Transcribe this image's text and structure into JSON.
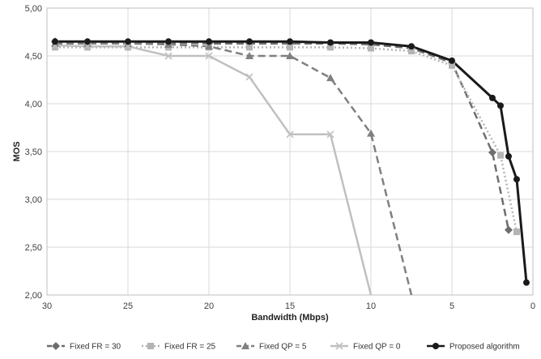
{
  "chart_data": {
    "type": "line",
    "xlabel": "Bandwidth (Mbps)",
    "ylabel": "MOS",
    "x_reversed": true,
    "xlim": [
      30,
      0
    ],
    "ylim": [
      2.0,
      5.0
    ],
    "x_ticks": [
      30,
      25,
      20,
      15,
      10,
      5,
      0
    ],
    "y_ticks": [
      "2,00",
      "2,50",
      "3,00",
      "3,50",
      "4,00",
      "4,50",
      "5,00"
    ],
    "y_tick_values": [
      2.0,
      2.5,
      3.0,
      3.5,
      4.0,
      4.5,
      5.0
    ],
    "grid": true,
    "legend_position": "bottom",
    "series": [
      {
        "name": "Fixed FR = 30",
        "color": "#6e6e6e",
        "dash": "dashed",
        "marker": "diamond",
        "points": [
          [
            29.5,
            4.65
          ],
          [
            27.5,
            4.64
          ],
          [
            25,
            4.64
          ],
          [
            22.5,
            4.64
          ],
          [
            20,
            4.63
          ],
          [
            17.5,
            4.63
          ],
          [
            15,
            4.63
          ],
          [
            12.5,
            4.63
          ],
          [
            10,
            4.62
          ],
          [
            7.5,
            4.58
          ],
          [
            5,
            4.43
          ],
          [
            2.5,
            3.49
          ],
          [
            1.5,
            2.68
          ]
        ]
      },
      {
        "name": "Fixed FR = 25",
        "color": "#b4b4b4",
        "dash": "dotted",
        "marker": "square",
        "points": [
          [
            29.5,
            4.59
          ],
          [
            27.5,
            4.59
          ],
          [
            25,
            4.59
          ],
          [
            22.5,
            4.59
          ],
          [
            20,
            4.59
          ],
          [
            17.5,
            4.59
          ],
          [
            15,
            4.59
          ],
          [
            12.5,
            4.59
          ],
          [
            10,
            4.58
          ],
          [
            7.5,
            4.55
          ],
          [
            5,
            4.4
          ],
          [
            2,
            3.46
          ],
          [
            1,
            2.66
          ]
        ]
      },
      {
        "name": "Fixed QP = 5",
        "color": "#808080",
        "dash": "dashed",
        "marker": "triangle",
        "points": [
          [
            29.5,
            4.63
          ],
          [
            27.5,
            4.63
          ],
          [
            25,
            4.63
          ],
          [
            22.5,
            4.62
          ],
          [
            20,
            4.6
          ],
          [
            17.5,
            4.5
          ],
          [
            15,
            4.5
          ],
          [
            12.5,
            4.27
          ],
          [
            10,
            3.69
          ],
          [
            7.5,
            2.0
          ]
        ]
      },
      {
        "name": "Fixed QP = 0",
        "color": "#c0c0c0",
        "dash": "solid",
        "marker": "x",
        "points": [
          [
            29.5,
            4.61
          ],
          [
            27.5,
            4.6
          ],
          [
            25,
            4.6
          ],
          [
            22.5,
            4.5
          ],
          [
            20,
            4.5
          ],
          [
            17.5,
            4.28
          ],
          [
            15,
            3.68
          ],
          [
            12.5,
            3.68
          ],
          [
            10,
            2.0
          ]
        ]
      },
      {
        "name": "Proposed algorithm",
        "color": "#1a1a1a",
        "dash": "solid",
        "marker": "circle",
        "points": [
          [
            29.5,
            4.65
          ],
          [
            27.5,
            4.65
          ],
          [
            25,
            4.65
          ],
          [
            22.5,
            4.65
          ],
          [
            20,
            4.65
          ],
          [
            17.5,
            4.65
          ],
          [
            15,
            4.65
          ],
          [
            12.5,
            4.64
          ],
          [
            10,
            4.64
          ],
          [
            7.5,
            4.6
          ],
          [
            5,
            4.45
          ],
          [
            2.5,
            4.06
          ],
          [
            2,
            3.98
          ],
          [
            1.5,
            3.45
          ],
          [
            1,
            3.21
          ],
          [
            0.4,
            2.13
          ]
        ]
      }
    ]
  }
}
